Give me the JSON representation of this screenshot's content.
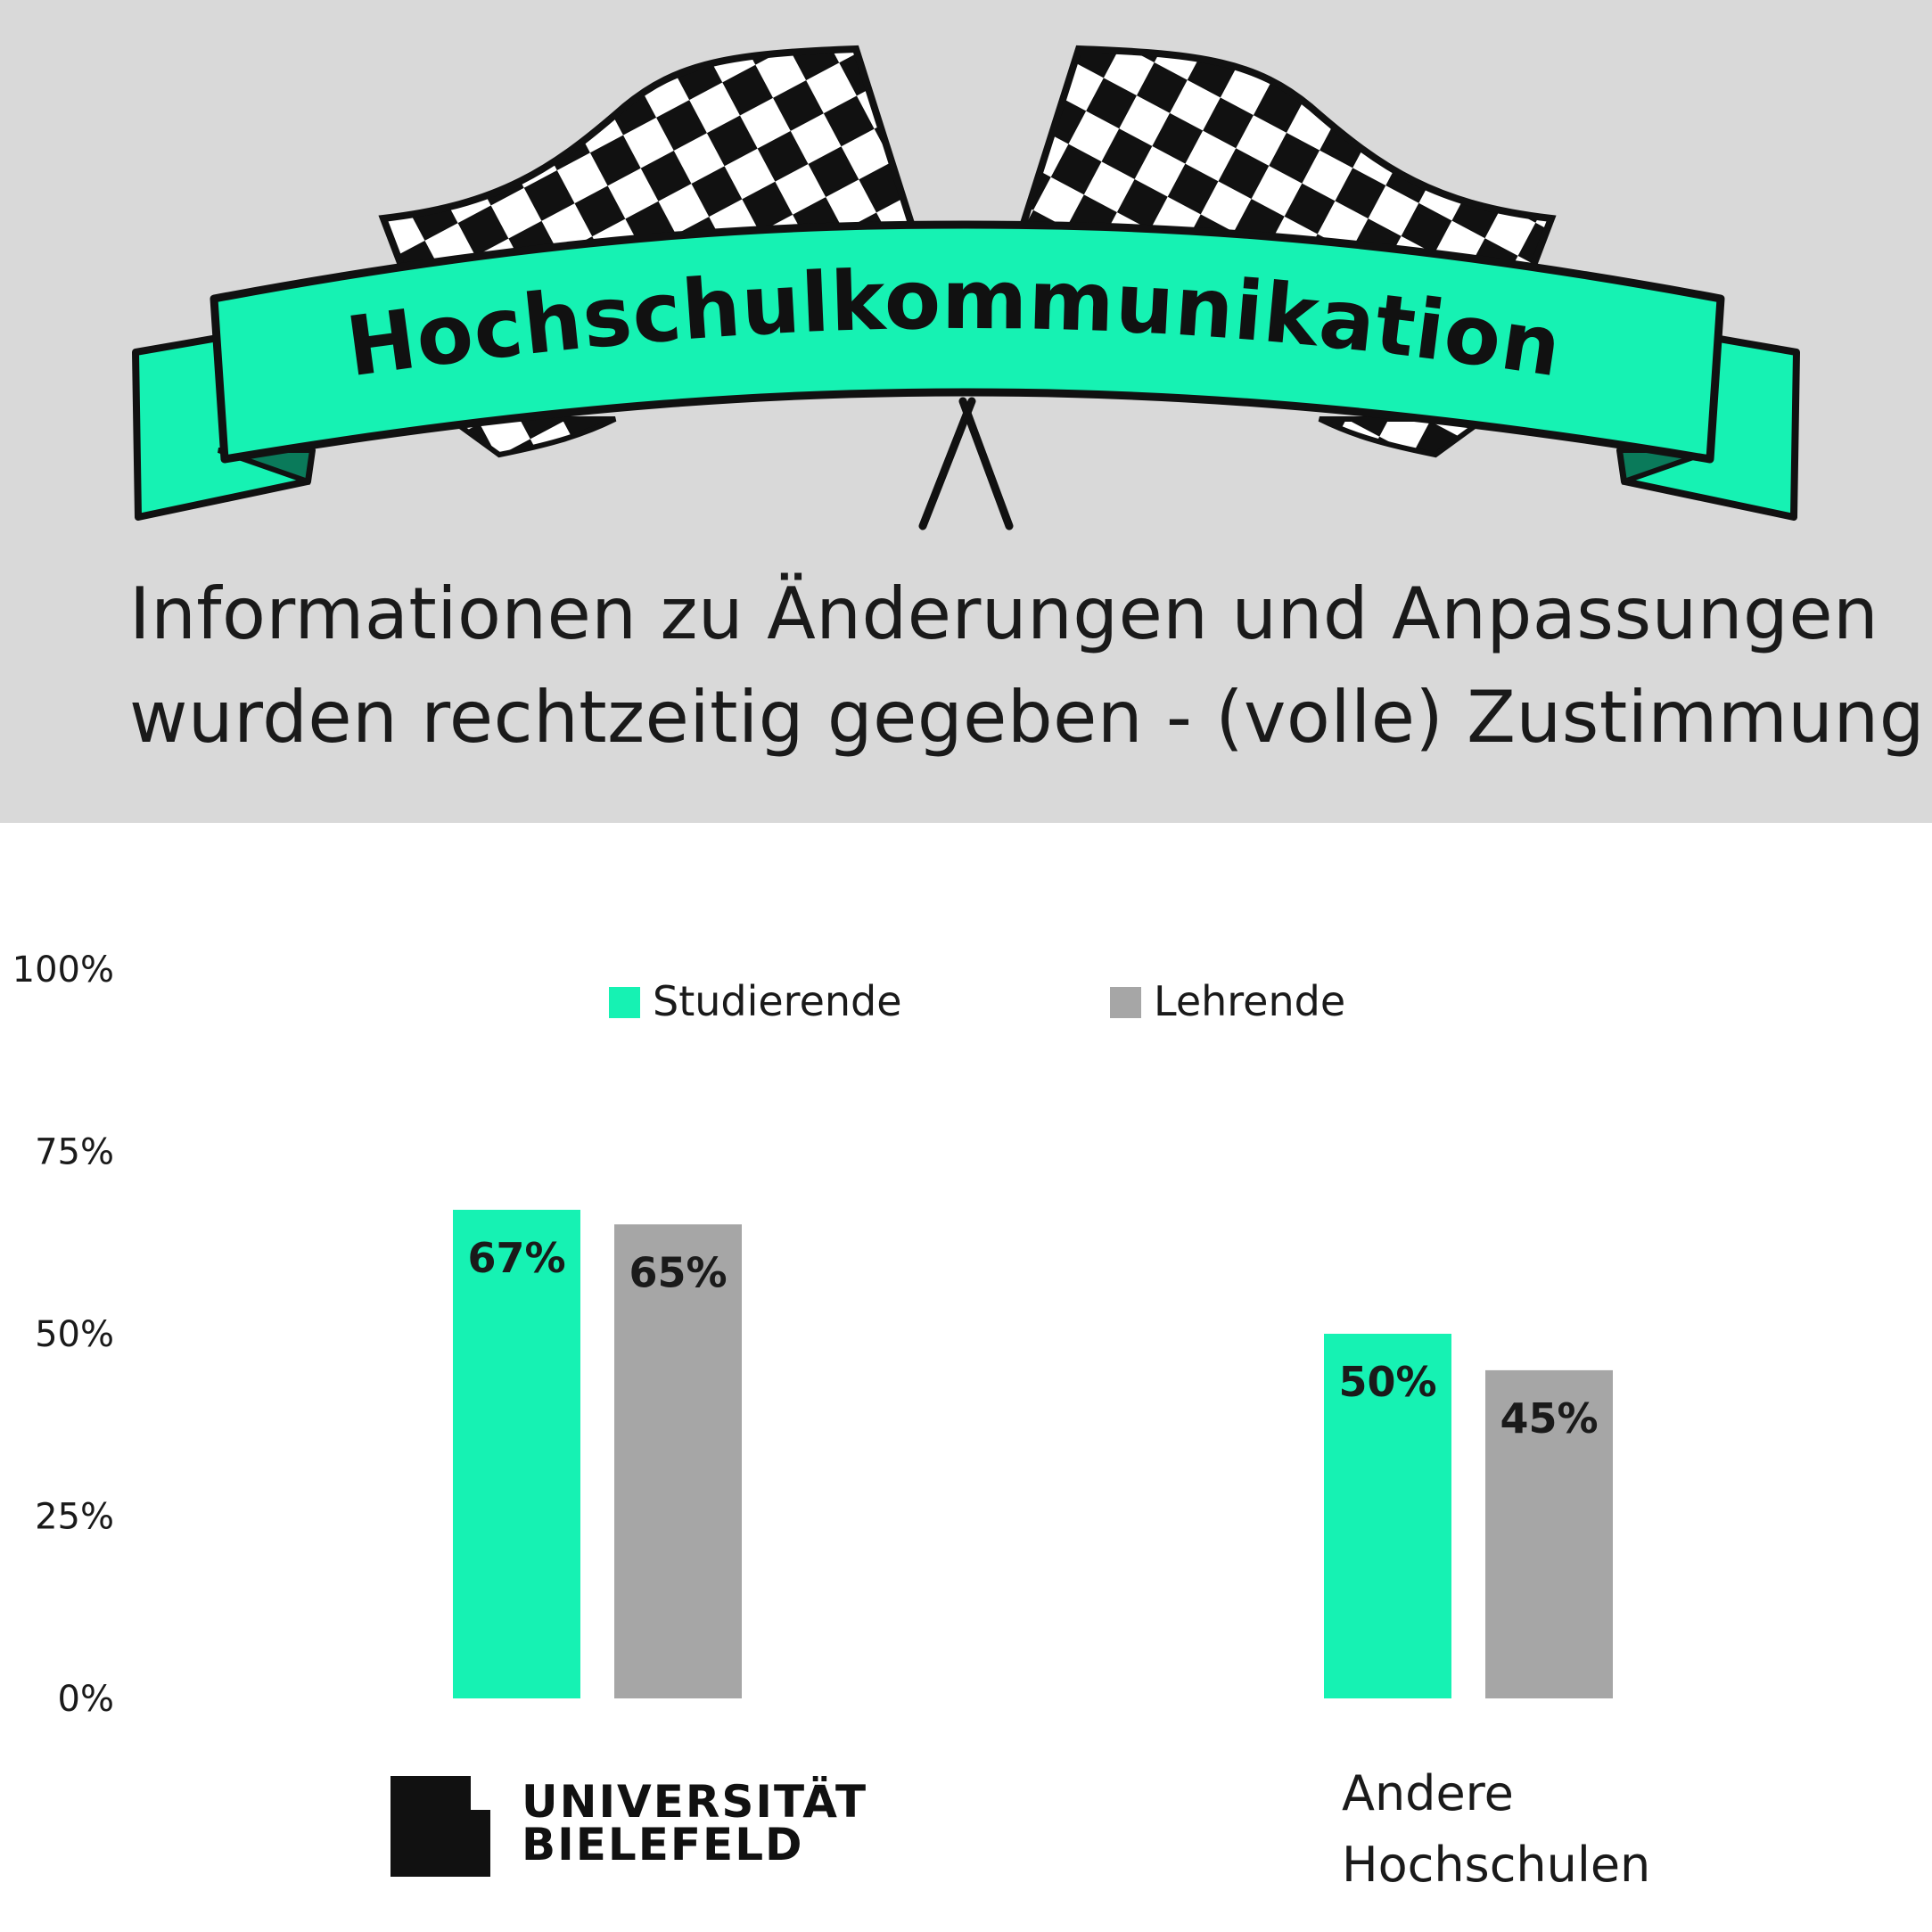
{
  "header": {
    "banner_title": "Hochschulkommunikation",
    "subtitle_lines": [
      "Informationen zu Änderungen und Anpassungen",
      "wurden rechtzeitig gegeben - (volle) Zustimmung"
    ]
  },
  "colors": {
    "accent": "#16f2b3",
    "gray_bar": "#a6a6a6",
    "header_bg": "#d9d9d9",
    "checker_dark": "#111111"
  },
  "logo": {
    "name": "university-logo",
    "lines": [
      "UNIVERSITÄT",
      "BIELEFELD"
    ]
  },
  "chart_data": {
    "type": "bar",
    "categories": [
      "Universität Bielefeld",
      "Andere Hochschulen"
    ],
    "category_lines": [
      [],
      [
        "Andere",
        "Hochschulen"
      ]
    ],
    "series": [
      {
        "name": "Studierende",
        "values": [
          67,
          50
        ],
        "color": "#16f2b3"
      },
      {
        "name": "Lehrende",
        "values": [
          65,
          45
        ],
        "color": "#a6a6a6"
      }
    ],
    "data_labels": [
      [
        "67%",
        "50%"
      ],
      [
        "65%",
        "45%"
      ]
    ],
    "ylim": [
      0,
      100
    ],
    "yticks": [
      "0%",
      "25%",
      "50%",
      "75%",
      "100%"
    ],
    "legend_placement": "top-center",
    "grid": false
  }
}
